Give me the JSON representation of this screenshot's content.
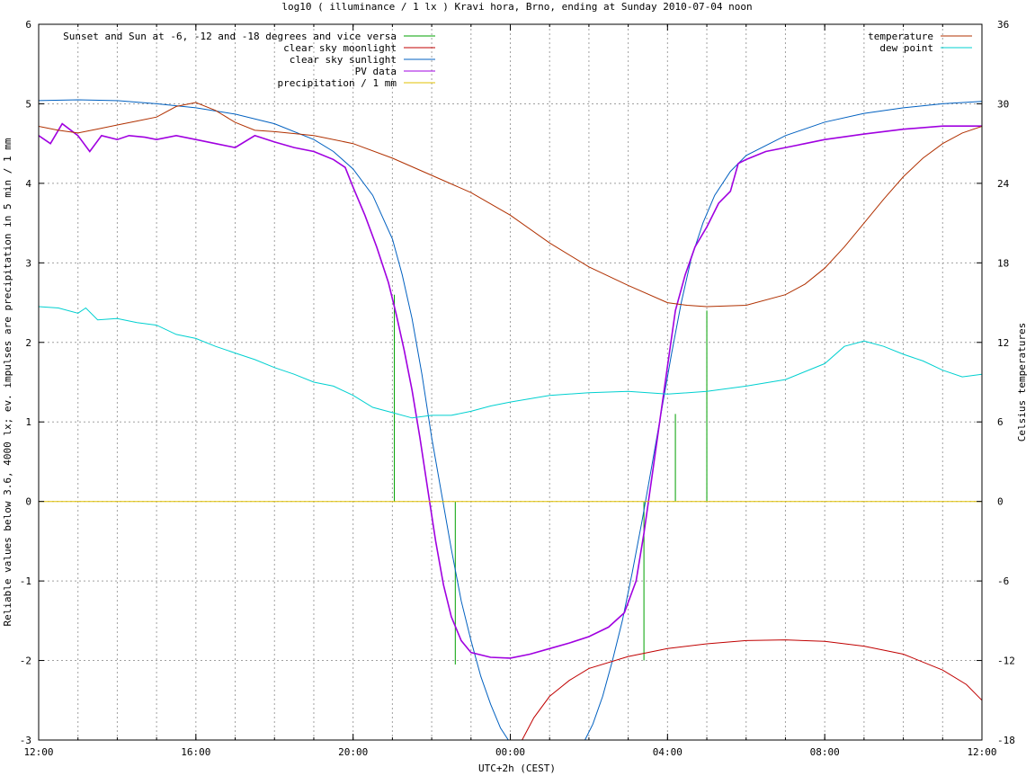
{
  "chart_data": {
    "type": "line",
    "title": "log10 ( illuminance / 1 lx ) Kravi hora, Brno, ending at Sunday 2010-07-04 noon",
    "xlabel": "UTC+2h (CEST)",
    "ylabel": "Reliable values below 3.6, 4000 lx; ev. impulses are precipitation in 5 min / 1 mm",
    "y2label": "Celsius temperatures",
    "x_unit": "hours since 12:00",
    "xlim": [
      0,
      24
    ],
    "ylim": [
      -3,
      6
    ],
    "y2lim": [
      -18,
      36
    ],
    "x_ticks": [
      {
        "x": 0,
        "label": "12:00"
      },
      {
        "x": 4,
        "label": "16:00"
      },
      {
        "x": 8,
        "label": "20:00"
      },
      {
        "x": 12,
        "label": "00:00"
      },
      {
        "x": 16,
        "label": "04:00"
      },
      {
        "x": 20,
        "label": "08:00"
      },
      {
        "x": 24,
        "label": "12:00"
      }
    ],
    "y_ticks": [
      "-3",
      "-2",
      "-1",
      "0",
      "1",
      "2",
      "3",
      "4",
      "5",
      "6"
    ],
    "y2_ticks": [
      "-18",
      "-12",
      "-6",
      "0",
      "6",
      "12",
      "18",
      "24",
      "30",
      "36"
    ],
    "grid": true,
    "legend_left": [
      {
        "name": "Sunset and Sun at -6, -12 and -18 degrees and vice versa",
        "color": "#00a000"
      },
      {
        "name": "clear sky moonlight",
        "color": "#c00000"
      },
      {
        "name": "clear sky sunlight",
        "color": "#0060c0"
      },
      {
        "name": "PV data",
        "color": "#a000e0"
      },
      {
        "name": "precipitation / 1 mm",
        "color": "#e0c000"
      }
    ],
    "legend_right": [
      {
        "name": "temperature",
        "color": "#b03000"
      },
      {
        "name": "dew point",
        "color": "#00d0d0"
      }
    ],
    "series": [
      {
        "name": "clear sky sunlight",
        "color": "#0060c0",
        "axis": "y",
        "points": [
          [
            0,
            5.04
          ],
          [
            1,
            5.05
          ],
          [
            2,
            5.04
          ],
          [
            3,
            5.0
          ],
          [
            4,
            4.95
          ],
          [
            5,
            4.87
          ],
          [
            6,
            4.75
          ],
          [
            7,
            4.55
          ],
          [
            7.5,
            4.4
          ],
          [
            8,
            4.18
          ],
          [
            8.5,
            3.85
          ],
          [
            9,
            3.3
          ],
          [
            9.25,
            2.85
          ],
          [
            9.5,
            2.3
          ],
          [
            9.75,
            1.6
          ],
          [
            10,
            0.8
          ],
          [
            10.25,
            0.1
          ],
          [
            10.5,
            -0.6
          ],
          [
            10.75,
            -1.25
          ],
          [
            11,
            -1.75
          ],
          [
            11.25,
            -2.2
          ],
          [
            11.5,
            -2.55
          ],
          [
            11.75,
            -2.85
          ],
          [
            11.95,
            -3.0
          ],
          [
            13.9,
            -3.0
          ],
          [
            14.1,
            -2.8
          ],
          [
            14.35,
            -2.45
          ],
          [
            14.6,
            -2.0
          ],
          [
            14.85,
            -1.5
          ],
          [
            15.1,
            -0.9
          ],
          [
            15.35,
            -0.25
          ],
          [
            15.6,
            0.45
          ],
          [
            15.85,
            1.15
          ],
          [
            16.1,
            1.85
          ],
          [
            16.35,
            2.5
          ],
          [
            16.6,
            3.05
          ],
          [
            16.9,
            3.5
          ],
          [
            17.2,
            3.85
          ],
          [
            17.6,
            4.15
          ],
          [
            18,
            4.35
          ],
          [
            19,
            4.6
          ],
          [
            20,
            4.77
          ],
          [
            21,
            4.88
          ],
          [
            22,
            4.95
          ],
          [
            23,
            5.0
          ],
          [
            24,
            5.03
          ]
        ]
      },
      {
        "name": "clear sky moonlight",
        "color": "#c00000",
        "axis": "y",
        "points": [
          [
            12.3,
            -3.0
          ],
          [
            12.6,
            -2.72
          ],
          [
            13,
            -2.45
          ],
          [
            13.5,
            -2.25
          ],
          [
            14,
            -2.1
          ],
          [
            15,
            -1.95
          ],
          [
            16,
            -1.85
          ],
          [
            17,
            -1.79
          ],
          [
            18,
            -1.75
          ],
          [
            19,
            -1.74
          ],
          [
            20,
            -1.76
          ],
          [
            21,
            -1.82
          ],
          [
            22,
            -1.92
          ],
          [
            23,
            -2.12
          ],
          [
            23.6,
            -2.3
          ],
          [
            24,
            -2.5
          ]
        ]
      },
      {
        "name": "PV data",
        "color": "#a000e0",
        "axis": "y",
        "points": [
          [
            0,
            4.6
          ],
          [
            0.3,
            4.5
          ],
          [
            0.6,
            4.75
          ],
          [
            1,
            4.6
          ],
          [
            1.3,
            4.4
          ],
          [
            1.6,
            4.6
          ],
          [
            2,
            4.55
          ],
          [
            2.3,
            4.6
          ],
          [
            2.7,
            4.58
          ],
          [
            3,
            4.55
          ],
          [
            3.5,
            4.6
          ],
          [
            4,
            4.55
          ],
          [
            4.5,
            4.5
          ],
          [
            5,
            4.45
          ],
          [
            5.5,
            4.6
          ],
          [
            6,
            4.52
          ],
          [
            6.5,
            4.45
          ],
          [
            7,
            4.4
          ],
          [
            7.5,
            4.3
          ],
          [
            7.8,
            4.2
          ],
          [
            8,
            3.95
          ],
          [
            8.3,
            3.6
          ],
          [
            8.6,
            3.2
          ],
          [
            8.9,
            2.75
          ],
          [
            9.1,
            2.35
          ],
          [
            9.3,
            1.9
          ],
          [
            9.5,
            1.4
          ],
          [
            9.7,
            0.8
          ],
          [
            9.9,
            0.15
          ],
          [
            10.1,
            -0.5
          ],
          [
            10.3,
            -1.05
          ],
          [
            10.5,
            -1.45
          ],
          [
            10.75,
            -1.75
          ],
          [
            11,
            -1.9
          ],
          [
            11.5,
            -1.96
          ],
          [
            12,
            -1.97
          ],
          [
            12.5,
            -1.92
          ],
          [
            13,
            -1.85
          ],
          [
            13.5,
            -1.78
          ],
          [
            14,
            -1.7
          ],
          [
            14.5,
            -1.58
          ],
          [
            14.9,
            -1.4
          ],
          [
            15.2,
            -1.0
          ],
          [
            15.4,
            -0.4
          ],
          [
            15.6,
            0.3
          ],
          [
            15.8,
            1.0
          ],
          [
            16,
            1.7
          ],
          [
            16.2,
            2.4
          ],
          [
            16.45,
            2.85
          ],
          [
            16.7,
            3.2
          ],
          [
            17,
            3.45
          ],
          [
            17.3,
            3.75
          ],
          [
            17.6,
            3.9
          ],
          [
            17.8,
            4.25
          ],
          [
            18,
            4.3
          ],
          [
            18.5,
            4.4
          ],
          [
            19,
            4.45
          ],
          [
            19.5,
            4.5
          ],
          [
            20,
            4.55
          ],
          [
            21,
            4.62
          ],
          [
            22,
            4.68
          ],
          [
            23,
            4.72
          ],
          [
            24,
            4.72
          ]
        ]
      },
      {
        "name": "temperature",
        "color": "#b03000",
        "axis": "y2",
        "points": [
          [
            0,
            28.3
          ],
          [
            0.5,
            28.0
          ],
          [
            1,
            27.8
          ],
          [
            1.5,
            28.1
          ],
          [
            2,
            28.4
          ],
          [
            2.5,
            28.7
          ],
          [
            3,
            29.0
          ],
          [
            3.5,
            29.8
          ],
          [
            4,
            30.1
          ],
          [
            4.5,
            29.5
          ],
          [
            5,
            28.6
          ],
          [
            5.5,
            28.0
          ],
          [
            6,
            27.9
          ],
          [
            7,
            27.6
          ],
          [
            8,
            27.0
          ],
          [
            9,
            25.9
          ],
          [
            10,
            24.6
          ],
          [
            11,
            23.3
          ],
          [
            12,
            21.6
          ],
          [
            13,
            19.5
          ],
          [
            14,
            17.7
          ],
          [
            15,
            16.3
          ],
          [
            16,
            15.0
          ],
          [
            16.5,
            14.8
          ],
          [
            17,
            14.7
          ],
          [
            18,
            14.8
          ],
          [
            19,
            15.6
          ],
          [
            19.5,
            16.4
          ],
          [
            20,
            17.6
          ],
          [
            20.5,
            19.2
          ],
          [
            21,
            21.0
          ],
          [
            21.5,
            22.8
          ],
          [
            22,
            24.5
          ],
          [
            22.5,
            25.9
          ],
          [
            23,
            27.0
          ],
          [
            23.5,
            27.8
          ],
          [
            24,
            28.3
          ]
        ]
      },
      {
        "name": "dew point",
        "color": "#00d0d0",
        "axis": "y2",
        "points": [
          [
            0,
            14.7
          ],
          [
            0.5,
            14.6
          ],
          [
            1,
            14.2
          ],
          [
            1.2,
            14.6
          ],
          [
            1.5,
            13.7
          ],
          [
            2,
            13.8
          ],
          [
            2.5,
            13.5
          ],
          [
            3,
            13.3
          ],
          [
            3.5,
            12.6
          ],
          [
            4,
            12.3
          ],
          [
            4.5,
            11.7
          ],
          [
            5,
            11.2
          ],
          [
            5.5,
            10.7
          ],
          [
            6,
            10.1
          ],
          [
            6.5,
            9.6
          ],
          [
            7,
            9.0
          ],
          [
            7.5,
            8.7
          ],
          [
            8,
            8.0
          ],
          [
            8.5,
            7.1
          ],
          [
            9,
            6.7
          ],
          [
            9.5,
            6.3
          ],
          [
            10,
            6.5
          ],
          [
            10.5,
            6.5
          ],
          [
            11,
            6.8
          ],
          [
            11.5,
            7.2
          ],
          [
            12,
            7.5
          ],
          [
            13,
            8.0
          ],
          [
            14,
            8.2
          ],
          [
            15,
            8.3
          ],
          [
            16,
            8.1
          ],
          [
            17,
            8.3
          ],
          [
            18,
            8.7
          ],
          [
            19,
            9.2
          ],
          [
            20,
            10.4
          ],
          [
            20.5,
            11.7
          ],
          [
            21,
            12.1
          ],
          [
            21.5,
            11.7
          ],
          [
            22,
            11.1
          ],
          [
            22.5,
            10.6
          ],
          [
            23,
            9.9
          ],
          [
            23.5,
            9.4
          ],
          [
            24,
            9.6
          ]
        ]
      },
      {
        "name": "precipitation / 1 mm",
        "color": "#e0c000",
        "axis": "y",
        "points": [
          [
            0,
            0
          ],
          [
            24,
            0
          ]
        ]
      }
    ],
    "impulses": {
      "name": "Sunset and Sun at -6, -12 and -18 degrees and vice versa",
      "color": "#00a000",
      "lines": [
        [
          9.05,
          0,
          2.6
        ],
        [
          10.6,
          0,
          -2.05
        ],
        [
          15.4,
          0,
          -2.0
        ],
        [
          16.2,
          0,
          1.1
        ],
        [
          17.0,
          0,
          2.4
        ]
      ]
    }
  }
}
